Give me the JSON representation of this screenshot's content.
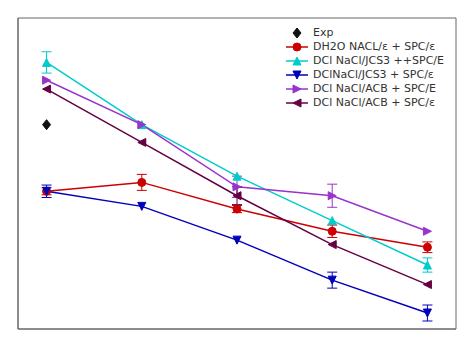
{
  "chart_data": {
    "type": "line",
    "tick_labels": false,
    "grid": false,
    "legend": "upper right",
    "xlim": [
      -0.3,
      4.3
    ],
    "xticks": [
      0,
      1,
      2,
      3,
      4
    ],
    "ylim": [
      0.0,
      3.5
    ],
    "yticks": [
      0.0,
      0.5,
      1.0,
      1.5,
      2.0,
      2.5,
      3.0,
      3.5
    ],
    "series": [
      {
        "name": "Exp",
        "type": "scatter",
        "color": "#111111",
        "marker": "diamond",
        "x": [
          0
        ],
        "values": [
          2.3
        ]
      },
      {
        "name": "DH2O NACL/ε + SPC/ε",
        "type": "line",
        "color": "#cc0000",
        "marker": "circle",
        "x": [
          0,
          1,
          2,
          3,
          4
        ],
        "values": [
          1.55,
          1.65,
          1.35,
          1.1,
          0.92
        ],
        "errors": [
          0.04,
          0.09,
          0.04,
          0.07,
          0.06
        ]
      },
      {
        "name": "DCl NaCl/JCS3 ++SPC/E",
        "type": "line",
        "color": "#00cccc",
        "marker": "triangle-up",
        "x": [
          0,
          1,
          2,
          3,
          4
        ],
        "values": [
          3.0,
          2.3,
          1.72,
          1.22,
          0.72
        ],
        "errors": [
          0.12,
          0.0,
          0.0,
          0.0,
          0.08
        ]
      },
      {
        "name": "DClNaCl/JCS3 + SPC/ε",
        "type": "line",
        "color": "#0000bb",
        "marker": "triangle-down",
        "x": [
          0,
          1,
          2,
          3,
          4
        ],
        "values": [
          1.55,
          1.38,
          1.0,
          0.55,
          0.18
        ],
        "errors": [
          0.07,
          0.0,
          0.0,
          0.09,
          0.09
        ]
      },
      {
        "name": "DCl NaCl/ACB + SPC/E",
        "type": "line",
        "color": "#9933cc",
        "marker": "triangle-right",
        "x": [
          0,
          1,
          2,
          3,
          4
        ],
        "values": [
          2.8,
          2.3,
          1.6,
          1.5,
          1.1
        ],
        "errors": [
          0.0,
          0.0,
          0.12,
          0.13,
          0.0
        ]
      },
      {
        "name": "DCl NaCl/ACB + SPC/ε",
        "type": "line",
        "color": "#660044",
        "marker": "triangle-left",
        "x": [
          0,
          1,
          2,
          3,
          4
        ],
        "values": [
          2.7,
          2.1,
          1.5,
          0.95,
          0.5
        ],
        "errors": [
          0.0,
          0.0,
          0.1,
          0.0,
          0.0
        ]
      }
    ]
  }
}
